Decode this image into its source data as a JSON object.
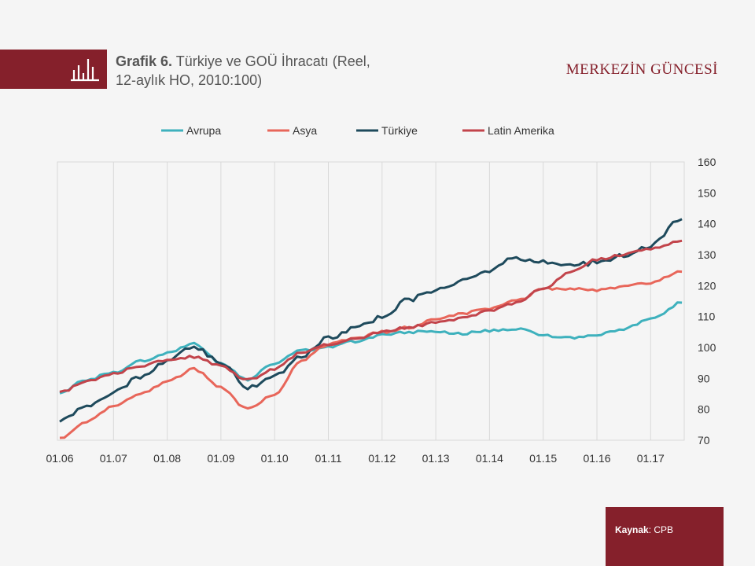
{
  "header": {
    "title_bold": "Grafik 6.",
    "title_rest": " Türkiye  ve GOÜ İhracatı (Reel,",
    "title_line2": "12-aylık HO, 2010:100)",
    "brand": "MERKEZİN GÜNCESİ",
    "icon": "bar-chart-icon"
  },
  "source": {
    "key": "Kaynak",
    "sep": ": ",
    "value": "CPB"
  },
  "colors": {
    "accent": "#85202b",
    "background": "#f5f5f5"
  },
  "chart_data": {
    "type": "line",
    "x_start": "2006-01",
    "x_end": "2017-08",
    "xticks": [
      "01.06",
      "01.07",
      "01.08",
      "01.09",
      "01.10",
      "01.11",
      "01.12",
      "01.13",
      "01.14",
      "01.15",
      "01.16",
      "01.17"
    ],
    "yticks": [
      "160",
      "150",
      "140",
      "130",
      "120",
      "110",
      "100",
      "90",
      "80",
      "70"
    ],
    "ylim": [
      70,
      160
    ],
    "y_axis_side": "right",
    "grid": "vertical",
    "legend_position": "top",
    "series": [
      {
        "name": "Avrupa",
        "color": "#3eb1bd",
        "points": [
          [
            "2006-01",
            85.5
          ],
          [
            "2006-07",
            89.5
          ],
          [
            "2007-01",
            92
          ],
          [
            "2007-07",
            95.5
          ],
          [
            "2008-01",
            98
          ],
          [
            "2008-07",
            101.5
          ],
          [
            "2009-01",
            95
          ],
          [
            "2009-07",
            89.5
          ],
          [
            "2010-01",
            95
          ],
          [
            "2010-07",
            99
          ],
          [
            "2011-01",
            100
          ],
          [
            "2011-07",
            102
          ],
          [
            "2012-01",
            104
          ],
          [
            "2012-07",
            105
          ],
          [
            "2013-01",
            105
          ],
          [
            "2013-07",
            104.5
          ],
          [
            "2014-01",
            105.5
          ],
          [
            "2014-07",
            106
          ],
          [
            "2015-01",
            104
          ],
          [
            "2015-07",
            103
          ],
          [
            "2016-01",
            104
          ],
          [
            "2016-07",
            106
          ],
          [
            "2017-01",
            109
          ],
          [
            "2017-08",
            114.5
          ]
        ]
      },
      {
        "name": "Asya",
        "color": "#e8665a",
        "points": [
          [
            "2006-01",
            70.5
          ],
          [
            "2006-07",
            76
          ],
          [
            "2007-01",
            81
          ],
          [
            "2007-07",
            85
          ],
          [
            "2008-01",
            89
          ],
          [
            "2008-07",
            93
          ],
          [
            "2009-01",
            87
          ],
          [
            "2009-07",
            80
          ],
          [
            "2010-01",
            85
          ],
          [
            "2010-07",
            96
          ],
          [
            "2011-01",
            101
          ],
          [
            "2011-07",
            103
          ],
          [
            "2012-01",
            105
          ],
          [
            "2012-07",
            106.5
          ],
          [
            "2013-01",
            109
          ],
          [
            "2013-07",
            111
          ],
          [
            "2014-01",
            112.5
          ],
          [
            "2014-07",
            115
          ],
          [
            "2015-01",
            119
          ],
          [
            "2015-07",
            119
          ],
          [
            "2016-01",
            118.5
          ],
          [
            "2016-07",
            119.5
          ],
          [
            "2017-01",
            121
          ],
          [
            "2017-08",
            124.5
          ]
        ]
      },
      {
        "name": "Türkiye",
        "color": "#1e4a5c",
        "points": [
          [
            "2006-01",
            76.5
          ],
          [
            "2006-07",
            81
          ],
          [
            "2007-01",
            85.5
          ],
          [
            "2007-07",
            90.5
          ],
          [
            "2008-01",
            95.5
          ],
          [
            "2008-07",
            100
          ],
          [
            "2009-01",
            95
          ],
          [
            "2009-07",
            87
          ],
          [
            "2010-01",
            91
          ],
          [
            "2010-07",
            97.5
          ],
          [
            "2011-01",
            103
          ],
          [
            "2011-07",
            106
          ],
          [
            "2012-01",
            110
          ],
          [
            "2012-07",
            115.5
          ],
          [
            "2013-01",
            118.5
          ],
          [
            "2013-07",
            121.5
          ],
          [
            "2014-01",
            125
          ],
          [
            "2014-07",
            129
          ],
          [
            "2015-01",
            128
          ],
          [
            "2015-07",
            126.5
          ],
          [
            "2016-01",
            127.5
          ],
          [
            "2016-07",
            130
          ],
          [
            "2017-01",
            133
          ],
          [
            "2017-08",
            141.5
          ]
        ]
      },
      {
        "name": "Latin Amerika",
        "color": "#c2444b",
        "points": [
          [
            "2006-01",
            85.5
          ],
          [
            "2006-07",
            89
          ],
          [
            "2007-01",
            91.5
          ],
          [
            "2007-07",
            94
          ],
          [
            "2008-01",
            96
          ],
          [
            "2008-07",
            97
          ],
          [
            "2009-01",
            94
          ],
          [
            "2009-07",
            89.5
          ],
          [
            "2010-01",
            93
          ],
          [
            "2010-07",
            98.5
          ],
          [
            "2011-01",
            101
          ],
          [
            "2011-07",
            103
          ],
          [
            "2012-01",
            105
          ],
          [
            "2012-07",
            106.5
          ],
          [
            "2013-01",
            108
          ],
          [
            "2013-07",
            109.5
          ],
          [
            "2014-01",
            112
          ],
          [
            "2014-07",
            114.5
          ],
          [
            "2015-01",
            119
          ],
          [
            "2015-07",
            124.5
          ],
          [
            "2016-01",
            128.5
          ],
          [
            "2016-07",
            130
          ],
          [
            "2017-01",
            132
          ],
          [
            "2017-08",
            134.5
          ]
        ]
      }
    ]
  }
}
